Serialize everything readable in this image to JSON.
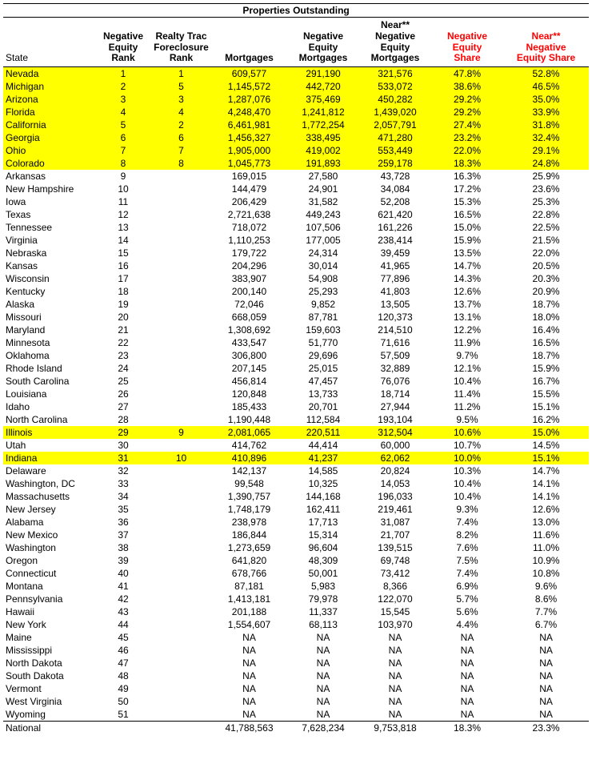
{
  "title": "Properties Outstanding",
  "columns": {
    "state": "State",
    "neg_equity_rank": "Negative Equity Rank",
    "realty_trac_rank": "Realty Trac Foreclosure Rank",
    "mortgages": "Mortgages",
    "neg_equity_mort": "Negative Equity Mortgages",
    "near_neg_equity_mort": "Near** Negative Equity Mortgages",
    "neg_equity_share": "Negative Equity Share",
    "near_neg_equity_share": "Near** Negative Equity Share"
  },
  "highlight_color": "#ffff00",
  "red_header_color": "#ff0000",
  "rows": [
    {
      "hl": true,
      "state": "Nevada",
      "ner": "1",
      "rtr": "1",
      "mort": "609,577",
      "nem": "291,190",
      "nnem": "321,576",
      "nes": "47.8%",
      "nnes": "52.8%"
    },
    {
      "hl": true,
      "state": "Michigan",
      "ner": "2",
      "rtr": "5",
      "mort": "1,145,572",
      "nem": "442,720",
      "nnem": "533,072",
      "nes": "38.6%",
      "nnes": "46.5%"
    },
    {
      "hl": true,
      "state": "Arizona",
      "ner": "3",
      "rtr": "3",
      "mort": "1,287,076",
      "nem": "375,469",
      "nnem": "450,282",
      "nes": "29.2%",
      "nnes": "35.0%"
    },
    {
      "hl": true,
      "state": "Florida",
      "ner": "4",
      "rtr": "4",
      "mort": "4,248,470",
      "nem": "1,241,812",
      "nnem": "1,439,020",
      "nes": "29.2%",
      "nnes": "33.9%"
    },
    {
      "hl": true,
      "state": "California",
      "ner": "5",
      "rtr": "2",
      "mort": "6,461,981",
      "nem": "1,772,254",
      "nnem": "2,057,791",
      "nes": "27.4%",
      "nnes": "31.8%"
    },
    {
      "hl": true,
      "state": "Georgia",
      "ner": "6",
      "rtr": "6",
      "mort": "1,456,327",
      "nem": "338,495",
      "nnem": "471,280",
      "nes": "23.2%",
      "nnes": "32.4%"
    },
    {
      "hl": true,
      "state": "Ohio",
      "ner": "7",
      "rtr": "7",
      "mort": "1,905,000",
      "nem": "419,002",
      "nnem": "553,449",
      "nes": "22.0%",
      "nnes": "29.1%"
    },
    {
      "hl": true,
      "state": "Colorado",
      "ner": "8",
      "rtr": "8",
      "mort": "1,045,773",
      "nem": "191,893",
      "nnem": "259,178",
      "nes": "18.3%",
      "nnes": "24.8%"
    },
    {
      "state": "Arkansas",
      "ner": "9",
      "rtr": "",
      "mort": "169,015",
      "nem": "27,580",
      "nnem": "43,728",
      "nes": "16.3%",
      "nnes": "25.9%"
    },
    {
      "state": "New Hampshire",
      "ner": "10",
      "rtr": "",
      "mort": "144,479",
      "nem": "24,901",
      "nnem": "34,084",
      "nes": "17.2%",
      "nnes": "23.6%"
    },
    {
      "state": "Iowa",
      "ner": "11",
      "rtr": "",
      "mort": "206,429",
      "nem": "31,582",
      "nnem": "52,208",
      "nes": "15.3%",
      "nnes": "25.3%"
    },
    {
      "state": "Texas",
      "ner": "12",
      "rtr": "",
      "mort": "2,721,638",
      "nem": "449,243",
      "nnem": "621,420",
      "nes": "16.5%",
      "nnes": "22.8%"
    },
    {
      "state": "Tennessee",
      "ner": "13",
      "rtr": "",
      "mort": "718,072",
      "nem": "107,506",
      "nnem": "161,226",
      "nes": "15.0%",
      "nnes": "22.5%"
    },
    {
      "state": "Virginia",
      "ner": "14",
      "rtr": "",
      "mort": "1,110,253",
      "nem": "177,005",
      "nnem": "238,414",
      "nes": "15.9%",
      "nnes": "21.5%"
    },
    {
      "state": "Nebraska",
      "ner": "15",
      "rtr": "",
      "mort": "179,722",
      "nem": "24,314",
      "nnem": "39,459",
      "nes": "13.5%",
      "nnes": "22.0%"
    },
    {
      "state": "Kansas",
      "ner": "16",
      "rtr": "",
      "mort": "204,296",
      "nem": "30,014",
      "nnem": "41,965",
      "nes": "14.7%",
      "nnes": "20.5%"
    },
    {
      "state": "Wisconsin",
      "ner": "17",
      "rtr": "",
      "mort": "383,907",
      "nem": "54,908",
      "nnem": "77,896",
      "nes": "14.3%",
      "nnes": "20.3%"
    },
    {
      "state": "Kentucky",
      "ner": "18",
      "rtr": "",
      "mort": "200,140",
      "nem": "25,293",
      "nnem": "41,803",
      "nes": "12.6%",
      "nnes": "20.9%"
    },
    {
      "state": "Alaska",
      "ner": "19",
      "rtr": "",
      "mort": "72,046",
      "nem": "9,852",
      "nnem": "13,505",
      "nes": "13.7%",
      "nnes": "18.7%"
    },
    {
      "state": "Missouri",
      "ner": "20",
      "rtr": "",
      "mort": "668,059",
      "nem": "87,781",
      "nnem": "120,373",
      "nes": "13.1%",
      "nnes": "18.0%"
    },
    {
      "state": "Maryland",
      "ner": "21",
      "rtr": "",
      "mort": "1,308,692",
      "nem": "159,603",
      "nnem": "214,510",
      "nes": "12.2%",
      "nnes": "16.4%"
    },
    {
      "state": "Minnesota",
      "ner": "22",
      "rtr": "",
      "mort": "433,547",
      "nem": "51,770",
      "nnem": "71,616",
      "nes": "11.9%",
      "nnes": "16.5%"
    },
    {
      "state": "Oklahoma",
      "ner": "23",
      "rtr": "",
      "mort": "306,800",
      "nem": "29,696",
      "nnem": "57,509",
      "nes": "9.7%",
      "nnes": "18.7%"
    },
    {
      "state": "Rhode Island",
      "ner": "24",
      "rtr": "",
      "mort": "207,145",
      "nem": "25,015",
      "nnem": "32,889",
      "nes": "12.1%",
      "nnes": "15.9%"
    },
    {
      "state": "South Carolina",
      "ner": "25",
      "rtr": "",
      "mort": "456,814",
      "nem": "47,457",
      "nnem": "76,076",
      "nes": "10.4%",
      "nnes": "16.7%"
    },
    {
      "state": "Louisiana",
      "ner": "26",
      "rtr": "",
      "mort": "120,848",
      "nem": "13,733",
      "nnem": "18,714",
      "nes": "11.4%",
      "nnes": "15.5%"
    },
    {
      "state": "Idaho",
      "ner": "27",
      "rtr": "",
      "mort": "185,433",
      "nem": "20,701",
      "nnem": "27,944",
      "nes": "11.2%",
      "nnes": "15.1%"
    },
    {
      "state": "North Carolina",
      "ner": "28",
      "rtr": "",
      "mort": "1,190,448",
      "nem": "112,584",
      "nnem": "193,104",
      "nes": "9.5%",
      "nnes": "16.2%"
    },
    {
      "hl": true,
      "state": "Illinois",
      "ner": "29",
      "rtr": "9",
      "mort": "2,081,065",
      "nem": "220,511",
      "nnem": "312,504",
      "nes": "10.6%",
      "nnes": "15.0%"
    },
    {
      "state": "Utah",
      "ner": "30",
      "rtr": "",
      "mort": "414,762",
      "nem": "44,414",
      "nnem": "60,000",
      "nes": "10.7%",
      "nnes": "14.5%"
    },
    {
      "hl": true,
      "state": "Indiana",
      "ner": "31",
      "rtr": "10",
      "mort": "410,896",
      "nem": "41,237",
      "nnem": "62,062",
      "nes": "10.0%",
      "nnes": "15.1%"
    },
    {
      "state": "Delaware",
      "ner": "32",
      "rtr": "",
      "mort": "142,137",
      "nem": "14,585",
      "nnem": "20,824",
      "nes": "10.3%",
      "nnes": "14.7%"
    },
    {
      "state": "Washington, DC",
      "ner": "33",
      "rtr": "",
      "mort": "99,548",
      "nem": "10,325",
      "nnem": "14,053",
      "nes": "10.4%",
      "nnes": "14.1%"
    },
    {
      "state": "Massachusetts",
      "ner": "34",
      "rtr": "",
      "mort": "1,390,757",
      "nem": "144,168",
      "nnem": "196,033",
      "nes": "10.4%",
      "nnes": "14.1%"
    },
    {
      "state": "New Jersey",
      "ner": "35",
      "rtr": "",
      "mort": "1,748,179",
      "nem": "162,411",
      "nnem": "219,461",
      "nes": "9.3%",
      "nnes": "12.6%"
    },
    {
      "state": "Alabama",
      "ner": "36",
      "rtr": "",
      "mort": "238,978",
      "nem": "17,713",
      "nnem": "31,087",
      "nes": "7.4%",
      "nnes": "13.0%"
    },
    {
      "state": "New Mexico",
      "ner": "37",
      "rtr": "",
      "mort": "186,844",
      "nem": "15,314",
      "nnem": "21,707",
      "nes": "8.2%",
      "nnes": "11.6%"
    },
    {
      "state": "Washington",
      "ner": "38",
      "rtr": "",
      "mort": "1,273,659",
      "nem": "96,604",
      "nnem": "139,515",
      "nes": "7.6%",
      "nnes": "11.0%"
    },
    {
      "state": "Oregon",
      "ner": "39",
      "rtr": "",
      "mort": "641,820",
      "nem": "48,309",
      "nnem": "69,748",
      "nes": "7.5%",
      "nnes": "10.9%"
    },
    {
      "state": "Connecticut",
      "ner": "40",
      "rtr": "",
      "mort": "678,766",
      "nem": "50,001",
      "nnem": "73,412",
      "nes": "7.4%",
      "nnes": "10.8%"
    },
    {
      "state": "Montana",
      "ner": "41",
      "rtr": "",
      "mort": "87,181",
      "nem": "5,983",
      "nnem": "8,366",
      "nes": "6.9%",
      "nnes": "9.6%"
    },
    {
      "state": "Pennsylvania",
      "ner": "42",
      "rtr": "",
      "mort": "1,413,181",
      "nem": "79,978",
      "nnem": "122,070",
      "nes": "5.7%",
      "nnes": "8.6%"
    },
    {
      "state": "Hawaii",
      "ner": "43",
      "rtr": "",
      "mort": "201,188",
      "nem": "11,337",
      "nnem": "15,545",
      "nes": "5.6%",
      "nnes": "7.7%"
    },
    {
      "state": "New York",
      "ner": "44",
      "rtr": "",
      "mort": "1,554,607",
      "nem": "68,113",
      "nnem": "103,970",
      "nes": "4.4%",
      "nnes": "6.7%"
    },
    {
      "state": "Maine",
      "ner": "45",
      "rtr": "",
      "mort": "NA",
      "nem": "NA",
      "nnem": "NA",
      "nes": "NA",
      "nnes": "NA"
    },
    {
      "state": "Mississippi",
      "ner": "46",
      "rtr": "",
      "mort": "NA",
      "nem": "NA",
      "nnem": "NA",
      "nes": "NA",
      "nnes": "NA"
    },
    {
      "state": "North Dakota",
      "ner": "47",
      "rtr": "",
      "mort": "NA",
      "nem": "NA",
      "nnem": "NA",
      "nes": "NA",
      "nnes": "NA"
    },
    {
      "state": "South Dakota",
      "ner": "48",
      "rtr": "",
      "mort": "NA",
      "nem": "NA",
      "nnem": "NA",
      "nes": "NA",
      "nnes": "NA"
    },
    {
      "state": "Vermont",
      "ner": "49",
      "rtr": "",
      "mort": "NA",
      "nem": "NA",
      "nnem": "NA",
      "nes": "NA",
      "nnes": "NA"
    },
    {
      "state": "West Virginia",
      "ner": "50",
      "rtr": "",
      "mort": "NA",
      "nem": "NA",
      "nnem": "NA",
      "nes": "NA",
      "nnes": "NA"
    },
    {
      "state": "Wyoming",
      "ner": "51",
      "rtr": "",
      "mort": "NA",
      "nem": "NA",
      "nnem": "NA",
      "nes": "NA",
      "nnes": "NA"
    }
  ],
  "national": {
    "state": "National",
    "ner": "",
    "rtr": "",
    "mort": "41,788,563",
    "nem": "7,628,234",
    "nnem": "9,753,818",
    "nes": "18.3%",
    "nnes": "23.3%"
  }
}
